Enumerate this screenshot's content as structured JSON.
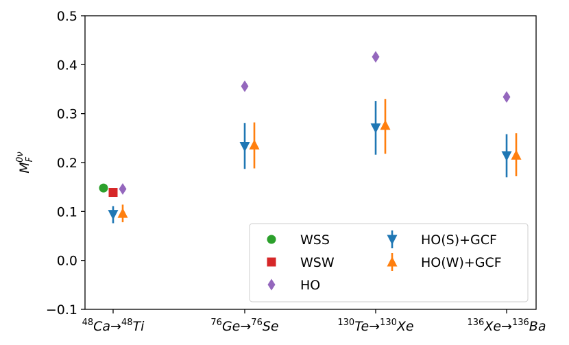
{
  "chart_data": {
    "type": "scatter",
    "ylabel_base": "M",
    "ylabel_sub": "F",
    "ylabel_sup": "0ν",
    "ylim": [
      -0.1,
      0.5
    ],
    "yticks": [
      "−0.1",
      "0.0",
      "0.1",
      "0.2",
      "0.3",
      "0.4",
      "0.5"
    ],
    "ytick_values": [
      -0.1,
      0.0,
      0.1,
      0.2,
      0.3,
      0.4,
      0.5
    ],
    "categories": [
      {
        "from_mass": "48",
        "from_el": "Ca",
        "arrow": "→",
        "to_mass": "48",
        "to_el": "Ti"
      },
      {
        "from_mass": "76",
        "from_el": "Ge",
        "arrow": "→",
        "to_mass": "76",
        "to_el": "Se"
      },
      {
        "from_mass": "130",
        "from_el": "Te",
        "arrow": "→",
        "to_mass": "130",
        "to_el": "Xe"
      },
      {
        "from_mass": "136",
        "from_el": "Xe",
        "arrow": "→",
        "to_mass": "136",
        "to_el": "Ba"
      }
    ],
    "series": [
      {
        "name": "WSS",
        "marker": "circle",
        "color": "#2ca02c",
        "points": [
          {
            "cat": 0,
            "offset": -0.28,
            "y": 0.148
          }
        ]
      },
      {
        "name": "WSW",
        "marker": "square",
        "color": "#d62728",
        "points": [
          {
            "cat": 0,
            "offset": 0.0,
            "y": 0.139
          }
        ]
      },
      {
        "name": "HO",
        "marker": "diamond",
        "color": "#9467bd",
        "points": [
          {
            "cat": 0,
            "offset": 0.28,
            "y": 0.146
          },
          {
            "cat": 1,
            "offset": 0.0,
            "y": 0.356
          },
          {
            "cat": 2,
            "offset": 0.0,
            "y": 0.416
          },
          {
            "cat": 3,
            "offset": 0.0,
            "y": 0.334
          }
        ]
      },
      {
        "name": "HO(S)+GCF",
        "marker": "triangle-down",
        "color": "#1f77b4",
        "points": [
          {
            "cat": 0,
            "offset": 0.0,
            "y": 0.094,
            "ylo": 0.076,
            "yhi": 0.111
          },
          {
            "cat": 1,
            "offset": 0.0,
            "y": 0.233,
            "ylo": 0.187,
            "yhi": 0.281
          },
          {
            "cat": 2,
            "offset": 0.0,
            "y": 0.271,
            "ylo": 0.216,
            "yhi": 0.326
          },
          {
            "cat": 3,
            "offset": 0.0,
            "y": 0.214,
            "ylo": 0.17,
            "yhi": 0.258
          }
        ]
      },
      {
        "name": "HO(W)+GCF",
        "marker": "triangle-up",
        "color": "#ff7f0e",
        "points": [
          {
            "cat": 0,
            "offset": 0.28,
            "y": 0.096,
            "ylo": 0.078,
            "yhi": 0.114
          },
          {
            "cat": 1,
            "offset": 0.28,
            "y": 0.236,
            "ylo": 0.188,
            "yhi": 0.282
          },
          {
            "cat": 2,
            "offset": 0.28,
            "y": 0.276,
            "ylo": 0.218,
            "yhi": 0.33
          },
          {
            "cat": 3,
            "offset": 0.28,
            "y": 0.215,
            "ylo": 0.172,
            "yhi": 0.26
          }
        ]
      }
    ],
    "legend_location": "lower-right",
    "grid": false
  }
}
